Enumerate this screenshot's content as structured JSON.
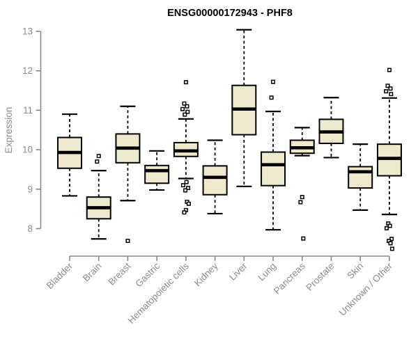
{
  "title": "ENSG00000172943 - PHF8",
  "colors": {
    "background": "#ffffff",
    "box_fill": "#EEE8CD",
    "box_border": "#000000",
    "median": "#000000",
    "whisker": "#000000",
    "outlier": "#000000",
    "axis": "#888888",
    "tick_label": "#8c8c8c",
    "axis_label": "#8c8c8c",
    "title": "#000000"
  },
  "chart_data": {
    "type": "boxplot",
    "title": "ENSG00000172943 - PHF8",
    "xlabel": "",
    "ylabel": "Expression",
    "ylim": [
      8,
      13
    ],
    "y_ticks": [
      8,
      9,
      10,
      11,
      12,
      13
    ],
    "grid": false,
    "legend": null,
    "categories": [
      "Bladder",
      "Brain",
      "Breast",
      "Gastric",
      "Hematopoietic cells",
      "Kidney",
      "Liver",
      "Lung",
      "Pancreas",
      "Prostate",
      "Skin",
      "Unknown / Other"
    ],
    "series": [
      {
        "name": "Bladder",
        "low": 8.83,
        "q1": 9.53,
        "median": 9.93,
        "q3": 10.31,
        "high": 10.9,
        "outliers": []
      },
      {
        "name": "Brain",
        "low": 7.74,
        "q1": 8.25,
        "median": 8.53,
        "q3": 8.8,
        "high": 9.47,
        "outliers": [
          9.84,
          9.7
        ]
      },
      {
        "name": "Breast",
        "low": 8.71,
        "q1": 9.67,
        "median": 10.04,
        "q3": 10.4,
        "high": 11.1,
        "outliers": [
          7.69
        ]
      },
      {
        "name": "Gastric",
        "low": 8.98,
        "q1": 9.15,
        "median": 9.47,
        "q3": 9.6,
        "high": 9.97,
        "outliers": []
      },
      {
        "name": "Hematopoietic cells",
        "low": 9.27,
        "q1": 9.83,
        "median": 9.97,
        "q3": 10.18,
        "high": 10.78,
        "outliers": [
          11.71,
          11.17,
          11.1,
          11.03,
          10.96,
          10.89,
          9.18,
          9.1,
          9.03,
          8.97,
          8.68,
          8.63,
          8.47,
          8.41
        ]
      },
      {
        "name": "Kidney",
        "low": 8.38,
        "q1": 8.86,
        "median": 9.3,
        "q3": 9.59,
        "high": 10.24,
        "outliers": []
      },
      {
        "name": "Liver",
        "low": 9.07,
        "q1": 10.38,
        "median": 11.03,
        "q3": 11.63,
        "high": 13.04,
        "outliers": []
      },
      {
        "name": "Lung",
        "low": 7.97,
        "q1": 9.09,
        "median": 9.62,
        "q3": 9.94,
        "high": 10.97,
        "outliers": [
          11.72,
          11.32
        ]
      },
      {
        "name": "Pancreas",
        "low": 9.85,
        "q1": 9.91,
        "median": 10.05,
        "q3": 10.24,
        "high": 10.56,
        "outliers": [
          8.8,
          8.67,
          7.75
        ]
      },
      {
        "name": "Prostate",
        "low": 9.8,
        "q1": 10.16,
        "median": 10.45,
        "q3": 10.77,
        "high": 11.32,
        "outliers": []
      },
      {
        "name": "Skin",
        "low": 8.47,
        "q1": 9.03,
        "median": 9.44,
        "q3": 9.57,
        "high": 10.14,
        "outliers": []
      },
      {
        "name": "Unknown / Other",
        "low": 8.36,
        "q1": 9.34,
        "median": 9.78,
        "q3": 10.14,
        "high": 11.31,
        "outliers": [
          12.02,
          11.62,
          11.55,
          11.48,
          11.41,
          8.13,
          8.07,
          8.01,
          7.74,
          7.69,
          7.63,
          7.49
        ]
      }
    ]
  }
}
